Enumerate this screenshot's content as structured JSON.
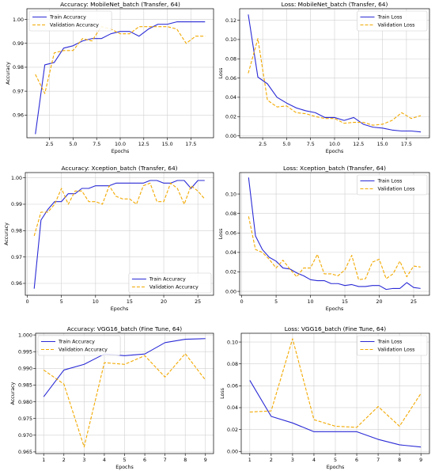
{
  "chart_data": [
    {
      "type": "line",
      "title": "Accuracy: MobileNet_batch (Transfer, 64)",
      "xlabel": "Epochs",
      "ylabel": "Accuracy",
      "xlim": [
        0.1,
        19.9
      ],
      "ylim": [
        0.9505,
        1.0045
      ],
      "xticks": [
        2.5,
        5.0,
        7.5,
        10.0,
        12.5,
        15.0,
        17.5
      ],
      "xtick_labels": [
        "2.5",
        "5.0",
        "7.5",
        "10.0",
        "12.5",
        "15.0",
        "17.5"
      ],
      "yticks": [
        0.96,
        0.97,
        0.98,
        0.99,
        1.0
      ],
      "ytick_labels": [
        "0.96",
        "0.97",
        "0.98",
        "0.99",
        "1.00"
      ],
      "grid": true,
      "legend": "upper-left",
      "x": [
        1,
        2,
        3,
        4,
        5,
        6,
        7,
        8,
        9,
        10,
        11,
        12,
        13,
        14,
        15,
        16,
        17,
        18,
        19
      ],
      "series": [
        {
          "name": "Train Accuracy",
          "color": "#2a2ad6",
          "style": "solid",
          "values": [
            0.952,
            0.981,
            0.982,
            0.988,
            0.989,
            0.991,
            0.992,
            0.992,
            0.994,
            0.995,
            0.995,
            0.993,
            0.996,
            0.998,
            0.998,
            0.999,
            0.999,
            0.999,
            0.999
          ]
        },
        {
          "name": "Validation Accuracy",
          "color": "#f2a900",
          "style": "dashed",
          "values": [
            0.977,
            0.969,
            0.986,
            0.987,
            0.987,
            0.992,
            0.991,
            0.997,
            0.996,
            0.994,
            0.994,
            0.997,
            0.997,
            0.997,
            0.997,
            0.996,
            0.99,
            0.993,
            0.993
          ]
        }
      ]
    },
    {
      "type": "line",
      "title": "Loss: MobileNet_batch (Transfer, 64)",
      "xlabel": "Epochs",
      "ylabel": "Loss",
      "xlim": [
        0.1,
        19.9
      ],
      "ylim": [
        -0.002,
        0.132
      ],
      "xticks": [
        2.5,
        5.0,
        7.5,
        10.0,
        12.5,
        15.0,
        17.5
      ],
      "xtick_labels": [
        "2.5",
        "5.0",
        "7.5",
        "10.0",
        "12.5",
        "15.0",
        "17.5"
      ],
      "yticks": [
        0.0,
        0.02,
        0.04,
        0.06,
        0.08,
        0.1,
        0.12
      ],
      "ytick_labels": [
        "0.00",
        "0.02",
        "0.04",
        "0.06",
        "0.08",
        "0.10",
        "0.12"
      ],
      "grid": true,
      "legend": "upper-right",
      "x": [
        1,
        2,
        3,
        4,
        5,
        6,
        7,
        8,
        9,
        10,
        11,
        12,
        13,
        14,
        15,
        16,
        17,
        18,
        19
      ],
      "series": [
        {
          "name": "Train Loss",
          "color": "#2a2ad6",
          "style": "solid",
          "values": [
            0.126,
            0.061,
            0.054,
            0.04,
            0.034,
            0.029,
            0.026,
            0.024,
            0.019,
            0.019,
            0.016,
            0.019,
            0.012,
            0.009,
            0.008,
            0.006,
            0.005,
            0.005,
            0.004
          ]
        },
        {
          "name": "Validation Loss",
          "color": "#f2a900",
          "style": "dashed",
          "values": [
            0.065,
            0.101,
            0.037,
            0.03,
            0.031,
            0.024,
            0.023,
            0.02,
            0.018,
            0.018,
            0.013,
            0.014,
            0.014,
            0.011,
            0.012,
            0.016,
            0.024,
            0.018,
            0.021
          ]
        }
      ]
    },
    {
      "type": "line",
      "title": "Accuracy: Xception_batch (Transfer, 64)",
      "xlabel": "Epochs",
      "ylabel": "Accuracy",
      "xlim": [
        -0.3,
        27.3
      ],
      "ylim": [
        0.9555,
        1.002
      ],
      "xticks": [
        0,
        5,
        10,
        15,
        20,
        25
      ],
      "xtick_labels": [
        "0",
        "5",
        "10",
        "15",
        "20",
        "25"
      ],
      "yticks": [
        0.96,
        0.97,
        0.98,
        0.99,
        1.0
      ],
      "ytick_labels": [
        "0.96",
        "0.97",
        "0.98",
        "0.99",
        "1.00"
      ],
      "grid": true,
      "legend": "lower-right",
      "x": [
        1,
        2,
        3,
        4,
        5,
        6,
        7,
        8,
        9,
        10,
        11,
        12,
        13,
        14,
        15,
        16,
        17,
        18,
        19,
        20,
        21,
        22,
        23,
        24,
        25,
        26
      ],
      "series": [
        {
          "name": "Train Accuracy",
          "color": "#2a2ad6",
          "style": "solid",
          "values": [
            0.958,
            0.984,
            0.988,
            0.991,
            0.991,
            0.994,
            0.994,
            0.996,
            0.996,
            0.997,
            0.997,
            0.997,
            0.998,
            0.998,
            0.998,
            0.998,
            0.998,
            0.999,
            0.999,
            0.998,
            0.998,
            0.999,
            0.999,
            0.996,
            0.999,
            0.999
          ]
        },
        {
          "name": "Validation Accuracy",
          "color": "#f2a900",
          "style": "dashed",
          "values": [
            0.978,
            0.987,
            0.987,
            0.99,
            0.996,
            0.99,
            0.995,
            0.995,
            0.991,
            0.991,
            0.99,
            0.997,
            0.993,
            0.992,
            0.992,
            0.99,
            0.997,
            0.998,
            0.991,
            0.991,
            0.998,
            0.996,
            0.99,
            0.997,
            0.995,
            0.992
          ]
        }
      ]
    },
    {
      "type": "line",
      "title": "Loss: Xception_batch (Transfer, 64)",
      "xlabel": "Epochs",
      "ylabel": "Loss",
      "xlim": [
        -0.3,
        27.3
      ],
      "ylim": [
        -0.004,
        0.122
      ],
      "xticks": [
        0,
        5,
        10,
        15,
        20,
        25
      ],
      "xtick_labels": [
        "0",
        "5",
        "10",
        "15",
        "20",
        "25"
      ],
      "yticks": [
        0.0,
        0.02,
        0.04,
        0.06,
        0.08,
        0.1
      ],
      "ytick_labels": [
        "0.00",
        "0.02",
        "0.04",
        "0.06",
        "0.08",
        "0.10"
      ],
      "grid": true,
      "legend": "upper-right",
      "x": [
        1,
        2,
        3,
        4,
        5,
        6,
        7,
        8,
        9,
        10,
        11,
        12,
        13,
        14,
        15,
        16,
        17,
        18,
        19,
        20,
        21,
        22,
        23,
        24,
        25,
        26
      ],
      "series": [
        {
          "name": "Train Loss",
          "color": "#2a2ad6",
          "style": "solid",
          "values": [
            0.117,
            0.057,
            0.043,
            0.035,
            0.031,
            0.024,
            0.023,
            0.019,
            0.016,
            0.012,
            0.011,
            0.011,
            0.008,
            0.008,
            0.006,
            0.007,
            0.005,
            0.005,
            0.006,
            0.006,
            0.002,
            0.003,
            0.003,
            0.009,
            0.004,
            0.003
          ]
        },
        {
          "name": "Validation Loss",
          "color": "#f2a900",
          "style": "dashed",
          "values": [
            0.077,
            0.043,
            0.04,
            0.033,
            0.024,
            0.032,
            0.023,
            0.015,
            0.024,
            0.024,
            0.038,
            0.018,
            0.018,
            0.016,
            0.022,
            0.037,
            0.012,
            0.013,
            0.03,
            0.033,
            0.013,
            0.018,
            0.031,
            0.015,
            0.026,
            0.025
          ]
        }
      ]
    },
    {
      "type": "line",
      "title": "Accuracy: VGG16_batch (Fine Tune, 64)",
      "xlabel": "Epochs",
      "ylabel": "Accuracy",
      "xlim": [
        0.6,
        9.4
      ],
      "ylim": [
        0.9645,
        1.0005
      ],
      "xticks": [
        1,
        2,
        3,
        4,
        5,
        6,
        7,
        8,
        9
      ],
      "xtick_labels": [
        "1",
        "2",
        "3",
        "4",
        "5",
        "6",
        "7",
        "8",
        "9"
      ],
      "yticks": [
        0.965,
        0.97,
        0.975,
        0.98,
        0.985,
        0.99,
        0.995,
        1.0
      ],
      "ytick_labels": [
        "0.965",
        "0.970",
        "0.975",
        "0.980",
        "0.985",
        "0.990",
        "0.995",
        "1.000"
      ],
      "grid": true,
      "legend": "upper-left",
      "x": [
        1,
        2,
        3,
        4,
        5,
        6,
        7,
        8,
        9
      ],
      "series": [
        {
          "name": "Train Accuracy",
          "color": "#2a2ad6",
          "style": "solid",
          "values": [
            0.9815,
            0.9895,
            0.9912,
            0.9943,
            0.9938,
            0.9943,
            0.9977,
            0.9987,
            0.9989
          ]
        },
        {
          "name": "Validation Accuracy",
          "color": "#f2a900",
          "style": "dashed",
          "values": [
            0.9895,
            0.9853,
            0.9665,
            0.9917,
            0.9912,
            0.9938,
            0.9874,
            0.9944,
            0.9865
          ]
        }
      ]
    },
    {
      "type": "line",
      "title": "Loss: VGG16_batch (Fine Tune, 64)",
      "xlabel": "Epochs",
      "ylabel": "Loss",
      "xlim": [
        0.6,
        9.4
      ],
      "ylim": [
        -0.002,
        0.108
      ],
      "xticks": [
        1,
        2,
        3,
        4,
        5,
        6,
        7,
        8,
        9
      ],
      "xtick_labels": [
        "1",
        "2",
        "3",
        "4",
        "5",
        "6",
        "7",
        "8",
        "9"
      ],
      "yticks": [
        0.0,
        0.02,
        0.04,
        0.06,
        0.08,
        0.1
      ],
      "ytick_labels": [
        "0.00",
        "0.02",
        "0.04",
        "0.06",
        "0.08",
        "0.10"
      ],
      "grid": true,
      "legend": "upper-right",
      "x": [
        1,
        2,
        3,
        4,
        5,
        6,
        7,
        8,
        9
      ],
      "series": [
        {
          "name": "Train Loss",
          "color": "#2a2ad6",
          "style": "solid",
          "values": [
            0.065,
            0.032,
            0.026,
            0.018,
            0.018,
            0.018,
            0.011,
            0.006,
            0.004
          ]
        },
        {
          "name": "Validation Loss",
          "color": "#f2a900",
          "style": "dashed",
          "values": [
            0.036,
            0.037,
            0.103,
            0.029,
            0.023,
            0.022,
            0.041,
            0.023,
            0.053
          ]
        }
      ]
    }
  ]
}
